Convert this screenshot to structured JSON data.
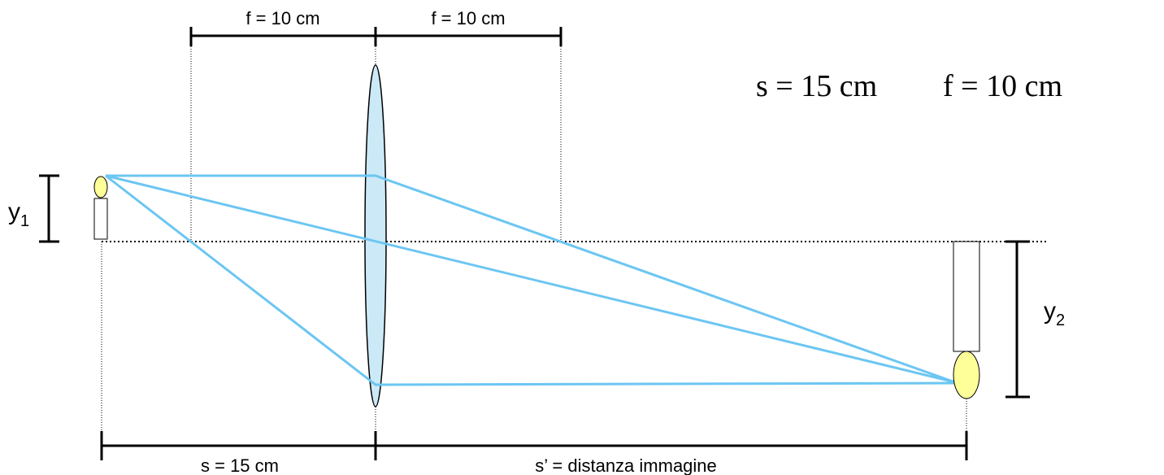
{
  "top_dimensions": [
    {
      "label": "f = 10 cm"
    },
    {
      "label": "f = 10 cm"
    }
  ],
  "givens": [
    {
      "label": "s = 15 cm"
    },
    {
      "label": "f = 10 cm"
    }
  ],
  "object_height": {
    "label": "y",
    "subscript": "1"
  },
  "image_height": {
    "label": "y",
    "subscript": "2"
  },
  "bottom_dimensions": [
    {
      "label": "s = 15 cm"
    },
    {
      "label": "s’ = distanza immagine"
    }
  ]
}
